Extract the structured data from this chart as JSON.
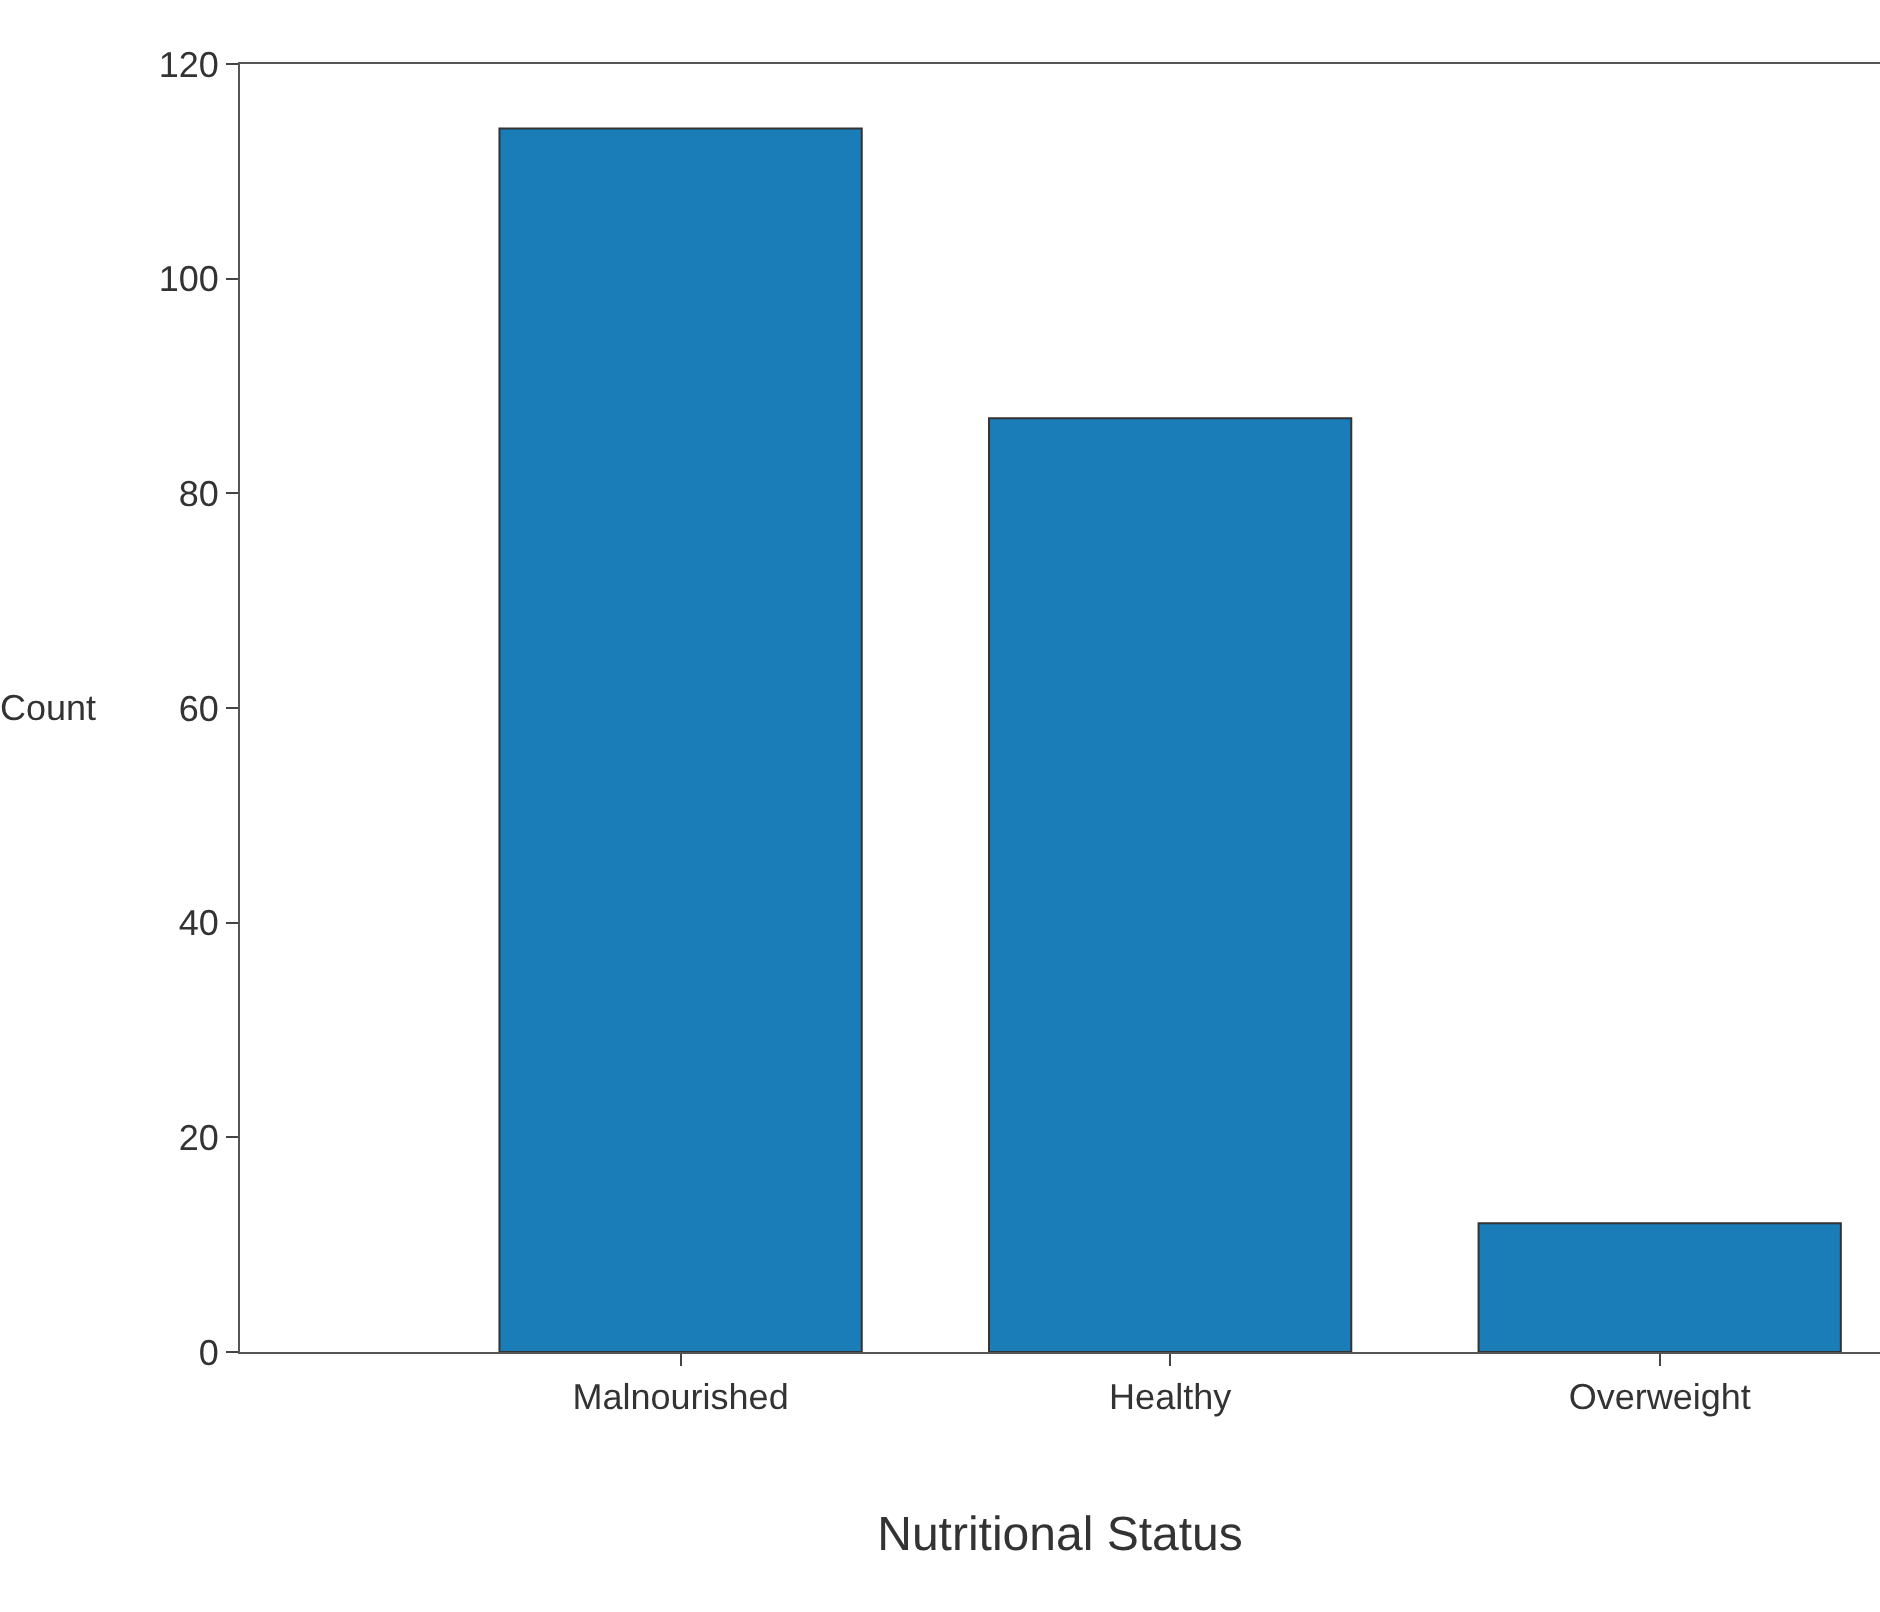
{
  "chart_data": {
    "type": "bar",
    "xlabel": "Nutritional Status",
    "ylabel": "Count",
    "categories": [
      "Malnourished",
      "Healthy",
      "Overweight"
    ],
    "values": [
      114,
      87,
      12
    ],
    "color": "#1b7db8",
    "ylim": [
      0,
      120
    ],
    "yticks": [
      0,
      20,
      40,
      60,
      80,
      100,
      120
    ]
  }
}
